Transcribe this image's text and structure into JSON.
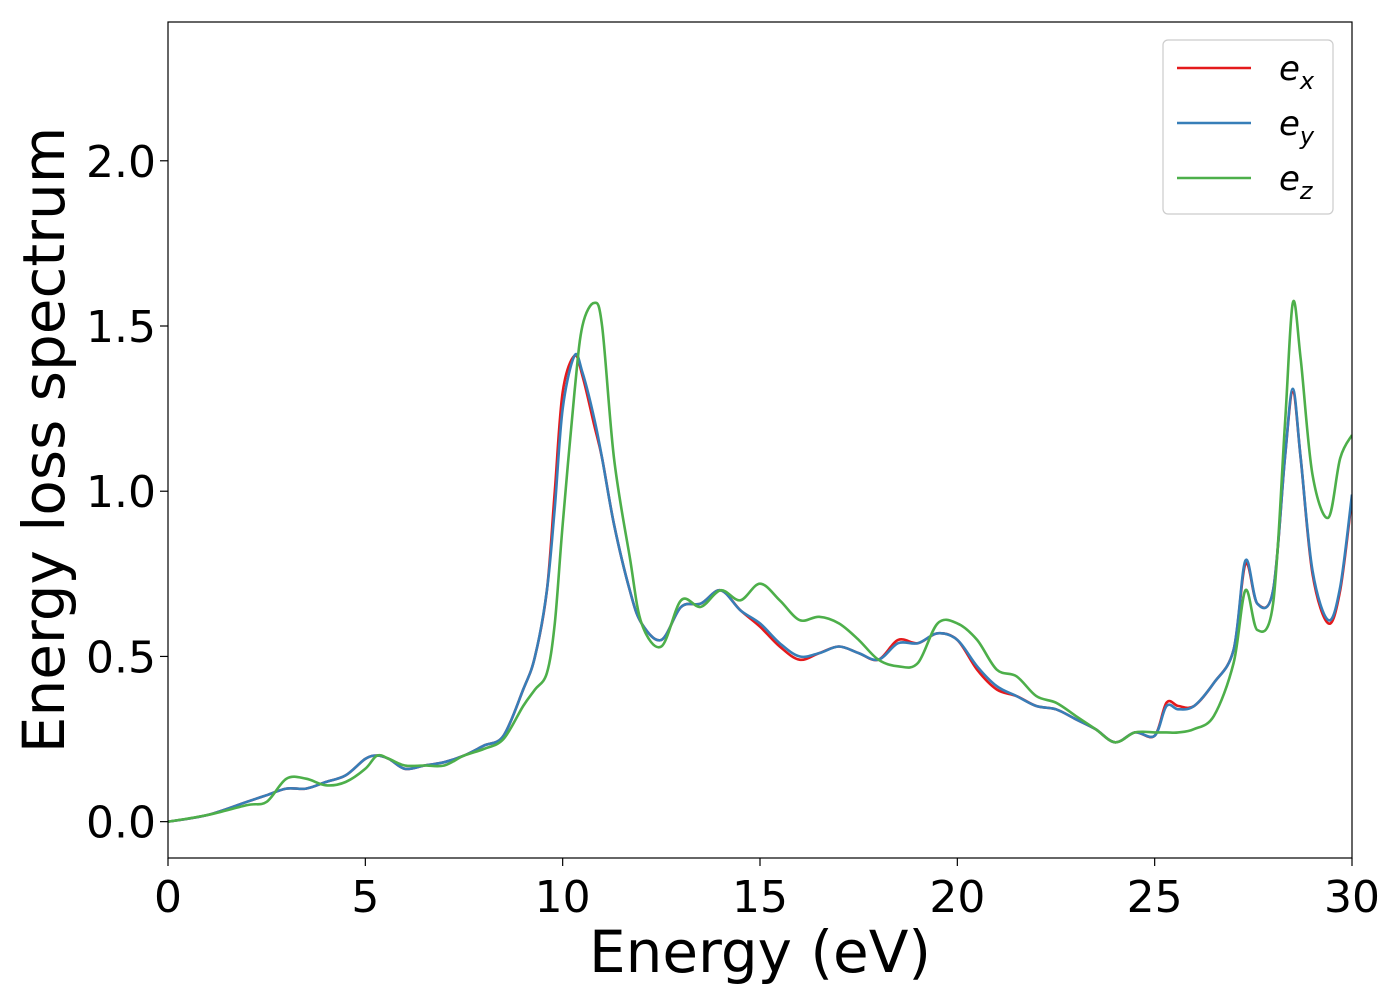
{
  "chart_data": {
    "type": "line",
    "title": "",
    "xlabel": "Energy (eV)",
    "ylabel": "Energy loss spectrum",
    "xlim": [
      0,
      30
    ],
    "ylim": [
      -0.11,
      2.42
    ],
    "xticks": [
      0,
      5,
      10,
      15,
      20,
      25,
      30
    ],
    "xtick_labels": [
      "0",
      "5",
      "10",
      "15",
      "20",
      "25",
      "30"
    ],
    "yticks": [
      0.0,
      0.5,
      1.0,
      1.5,
      2.0
    ],
    "ytick_labels": [
      "0.0",
      "0.5",
      "1.0",
      "1.5",
      "2.0"
    ],
    "grid": false,
    "legend_position": "top-right",
    "x": [
      0,
      1,
      2,
      2.5,
      3,
      3.5,
      4,
      4.5,
      5,
      5.3,
      5.6,
      6,
      6.5,
      7,
      7.5,
      8,
      8.5,
      9,
      9.3,
      9.6,
      9.8,
      10,
      10.3,
      10.5,
      10.8,
      11,
      11.3,
      11.7,
      12,
      12.5,
      13,
      13.5,
      14,
      14.5,
      15,
      15.5,
      16,
      16.5,
      17,
      17.5,
      18,
      18.5,
      19,
      19.5,
      20,
      20.5,
      21,
      21.5,
      22,
      22.5,
      23,
      23.5,
      24,
      24.5,
      25,
      25.3,
      25.6,
      26,
      26.5,
      27,
      27.3,
      27.6,
      28,
      28.3,
      28.5,
      28.7,
      29,
      29.4,
      29.7,
      30
    ],
    "series": [
      {
        "name": "e_x",
        "color": "#e41a1c",
        "values": [
          0.0,
          0.02,
          0.06,
          0.08,
          0.1,
          0.1,
          0.12,
          0.14,
          0.19,
          0.2,
          0.19,
          0.16,
          0.17,
          0.18,
          0.2,
          0.23,
          0.26,
          0.4,
          0.5,
          0.7,
          1.0,
          1.3,
          1.41,
          1.35,
          1.2,
          1.1,
          0.9,
          0.7,
          0.6,
          0.55,
          0.65,
          0.66,
          0.7,
          0.64,
          0.59,
          0.53,
          0.49,
          0.51,
          0.53,
          0.51,
          0.49,
          0.55,
          0.54,
          0.57,
          0.55,
          0.46,
          0.4,
          0.38,
          0.35,
          0.34,
          0.31,
          0.28,
          0.24,
          0.27,
          0.26,
          0.36,
          0.35,
          0.35,
          0.42,
          0.52,
          0.78,
          0.66,
          0.7,
          1.1,
          1.3,
          1.1,
          0.75,
          0.6,
          0.7,
          0.98
        ]
      },
      {
        "name": "e_y",
        "color": "#377eb8",
        "values": [
          0.0,
          0.02,
          0.06,
          0.08,
          0.1,
          0.1,
          0.12,
          0.14,
          0.19,
          0.2,
          0.19,
          0.16,
          0.17,
          0.18,
          0.2,
          0.23,
          0.26,
          0.4,
          0.5,
          0.7,
          0.95,
          1.25,
          1.41,
          1.36,
          1.22,
          1.1,
          0.9,
          0.7,
          0.6,
          0.55,
          0.65,
          0.66,
          0.7,
          0.64,
          0.6,
          0.54,
          0.5,
          0.51,
          0.53,
          0.51,
          0.49,
          0.54,
          0.54,
          0.57,
          0.55,
          0.47,
          0.41,
          0.38,
          0.35,
          0.34,
          0.31,
          0.28,
          0.24,
          0.27,
          0.26,
          0.35,
          0.34,
          0.35,
          0.42,
          0.52,
          0.79,
          0.66,
          0.7,
          1.1,
          1.31,
          1.1,
          0.76,
          0.61,
          0.71,
          0.99
        ]
      },
      {
        "name": "e_z",
        "color": "#4daf4a",
        "values": [
          0.0,
          0.02,
          0.05,
          0.06,
          0.13,
          0.13,
          0.11,
          0.12,
          0.16,
          0.2,
          0.19,
          0.17,
          0.17,
          0.17,
          0.2,
          0.22,
          0.25,
          0.35,
          0.4,
          0.45,
          0.6,
          0.9,
          1.3,
          1.5,
          1.57,
          1.5,
          1.1,
          0.8,
          0.6,
          0.53,
          0.67,
          0.65,
          0.7,
          0.67,
          0.72,
          0.67,
          0.61,
          0.62,
          0.6,
          0.55,
          0.49,
          0.47,
          0.48,
          0.6,
          0.6,
          0.55,
          0.46,
          0.44,
          0.38,
          0.36,
          0.32,
          0.28,
          0.24,
          0.27,
          0.27,
          0.27,
          0.27,
          0.28,
          0.32,
          0.48,
          0.7,
          0.58,
          0.66,
          1.2,
          1.57,
          1.4,
          1.05,
          0.92,
          1.1,
          1.17
        ]
      }
    ]
  },
  "legend": {
    "entries": [
      {
        "base": "e",
        "sub": "x",
        "color": "#e41a1c"
      },
      {
        "base": "e",
        "sub": "y",
        "color": "#377eb8"
      },
      {
        "base": "e",
        "sub": "z",
        "color": "#4daf4a"
      }
    ]
  }
}
